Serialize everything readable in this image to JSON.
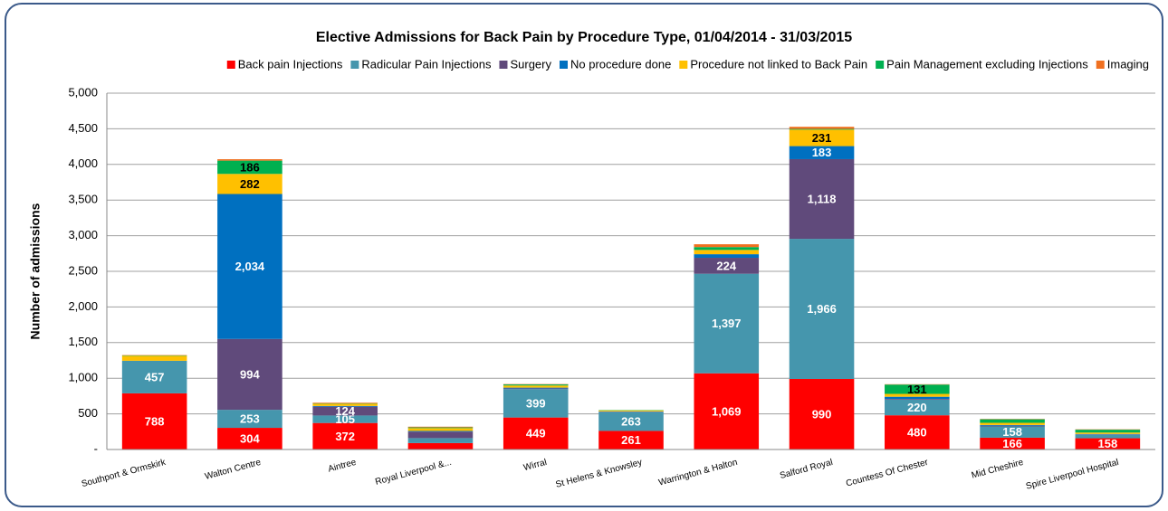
{
  "chart_data": {
    "type": "stacked_bar",
    "title": "Elective Admissions for Back Pain by Procedure Type, 01/04/2014 - 31/03/2015",
    "y_label": "Number of admissions",
    "categories": [
      "Southport & Ormskirk",
      "Walton Centre",
      "Aintree",
      "Royal Liverpool &...",
      "Wirral",
      "St Helens & Knowsley",
      "Warrington & Halton",
      "Salford Royal",
      "Countess Of Chester",
      "Mid Cheshire",
      "Spire Liverpool Hospital"
    ],
    "series": [
      {
        "name": "Back pain Injections",
        "color": "#ff0000",
        "label_color": "#ffffff",
        "values": [
          788,
          304,
          372,
          90,
          449,
          261,
          1069,
          990,
          480,
          166,
          158
        ],
        "value_labels": [
          "788",
          "304",
          "372",
          null,
          "449",
          "261",
          "1,069",
          "990",
          "480",
          "166",
          "158"
        ]
      },
      {
        "name": "Radicular Pain Injections",
        "color": "#4596ad",
        "label_color": "#ffffff",
        "values": [
          457,
          253,
          105,
          70,
          399,
          263,
          1397,
          1966,
          220,
          158,
          50
        ],
        "value_labels": [
          "457",
          "253",
          "105",
          null,
          "399",
          "263",
          "1,397",
          "1,966",
          "220",
          "158",
          null
        ]
      },
      {
        "name": "Surgery",
        "color": "#604a7b",
        "label_color": "#ffffff",
        "values": [
          0,
          994,
          124,
          90,
          10,
          5,
          224,
          1118,
          10,
          10,
          5
        ],
        "value_labels": [
          null,
          "994",
          "124",
          null,
          null,
          null,
          "224",
          "1,118",
          null,
          null,
          null
        ]
      },
      {
        "name": "No procedure done",
        "color": "#0070c0",
        "label_color": "#ffffff",
        "values": [
          0,
          2034,
          10,
          10,
          10,
          5,
          50,
          183,
          30,
          10,
          5
        ],
        "value_labels": [
          null,
          "2,034",
          null,
          null,
          null,
          null,
          null,
          "183",
          null,
          null,
          null
        ]
      },
      {
        "name": "Procedure not linked to Back Pain",
        "color": "#ffc000",
        "label_color": "#000000",
        "values": [
          70,
          282,
          30,
          40,
          30,
          15,
          60,
          231,
          40,
          30,
          20
        ],
        "value_labels": [
          null,
          "282",
          null,
          null,
          null,
          null,
          null,
          "231",
          null,
          null,
          null
        ]
      },
      {
        "name": "Pain Management excluding Injections",
        "color": "#00b050",
        "label_color": "#000000",
        "values": [
          5,
          186,
          5,
          10,
          15,
          5,
          40,
          10,
          131,
          50,
          40
        ],
        "value_labels": [
          null,
          "186",
          null,
          null,
          null,
          null,
          null,
          null,
          "131",
          null,
          null
        ]
      },
      {
        "name": "Imaging",
        "color": "#f07020",
        "label_color": "#000000",
        "values": [
          5,
          20,
          10,
          10,
          5,
          0,
          40,
          30,
          5,
          5,
          5
        ],
        "value_labels": [
          null,
          null,
          null,
          null,
          null,
          null,
          null,
          null,
          null,
          null,
          null
        ]
      }
    ],
    "ylim": [
      0,
      5000
    ],
    "yticks": [
      {
        "value": 0,
        "label": "-"
      },
      500,
      {
        "value": 1000,
        "label": "1,000"
      },
      {
        "value": 1500,
        "label": "1,500"
      },
      {
        "value": 2000,
        "label": "2,000"
      },
      {
        "value": 2500,
        "label": "2,500"
      },
      {
        "value": 3000,
        "label": "3,000"
      },
      {
        "value": 3500,
        "label": "3,500"
      },
      {
        "value": 4000,
        "label": "4,000"
      },
      {
        "value": 4500,
        "label": "4,500"
      },
      {
        "value": 5000,
        "label": "5,000"
      }
    ],
    "grid": true,
    "legend": "top"
  }
}
